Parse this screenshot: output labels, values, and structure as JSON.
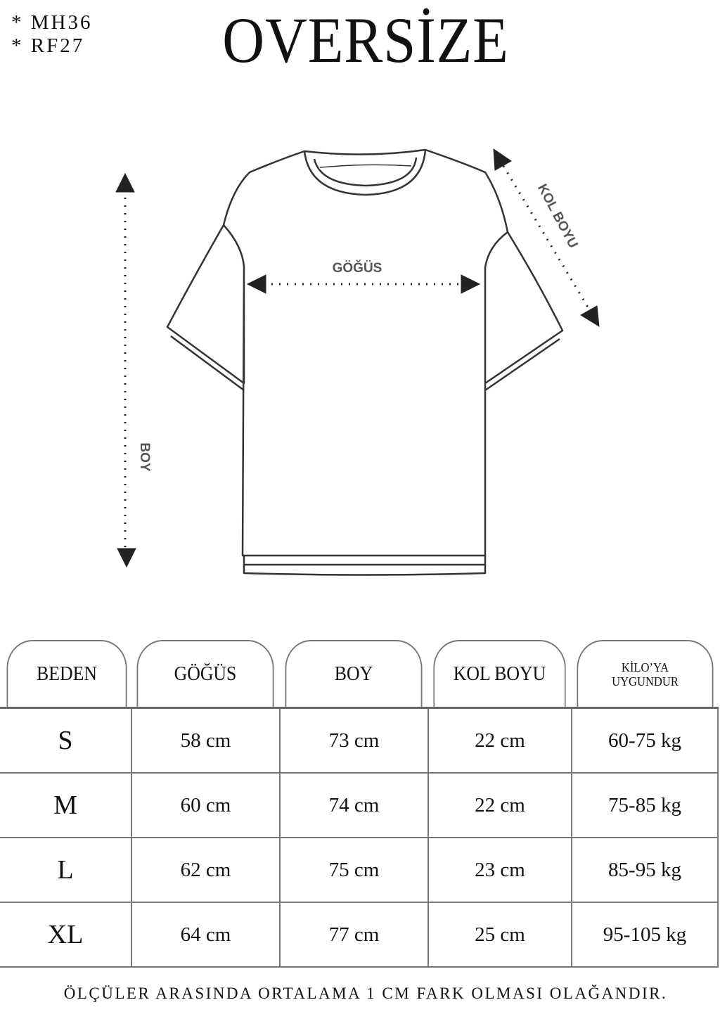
{
  "codes": [
    "*  MH36",
    "*  RF27"
  ],
  "title": "OVERSİZE",
  "diagram": {
    "boy_label": "BOY",
    "gogus_label": "GÖĞÜS",
    "kol_label": "KOL BOYU"
  },
  "table": {
    "headers": [
      "BEDEN",
      "GÖĞÜS",
      "BOY",
      "KOL BOYU",
      "KİLO'YA\nUYGUNDUR"
    ],
    "header_kilo_line1": "KİLO’YA",
    "header_kilo_line2": "UYGUNDUR",
    "rows": [
      [
        "S",
        "58 cm",
        "73 cm",
        "22  cm",
        "60-75 kg"
      ],
      [
        "M",
        "60 cm",
        "74 cm",
        "22 cm",
        "75-85 kg"
      ],
      [
        "L",
        "62 cm",
        "75 cm",
        "23 cm",
        "85-95 kg"
      ],
      [
        "XL",
        "64 cm",
        "77 cm",
        "25 cm",
        "95-105 kg"
      ]
    ]
  },
  "footer": "ÖLÇÜLER ARASINDA ORTALAMA 1 CM FARK OLMASI OLAĞANDIR."
}
